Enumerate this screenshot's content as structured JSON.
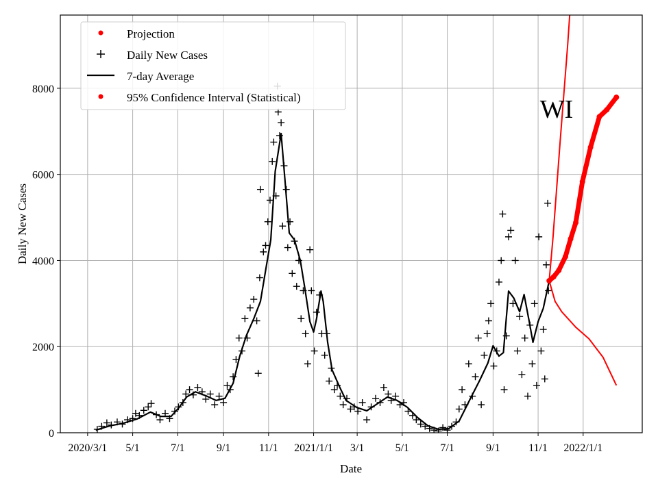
{
  "chart_data": {
    "type": "line",
    "title": "",
    "annotation": "WI",
    "xlabel": "Date",
    "ylabel": "Daily New Cases",
    "xlim": [
      "2020-01-24",
      "2022-03-22"
    ],
    "ylim": [
      0,
      9700
    ],
    "grid": true,
    "legend_placement": "top-left",
    "x_ticks": [
      {
        "date": "2020-03-01",
        "label": "2020/3/1"
      },
      {
        "date": "2020-05-01",
        "label": "5/1"
      },
      {
        "date": "2020-07-01",
        "label": "7/1"
      },
      {
        "date": "2020-09-01",
        "label": "9/1"
      },
      {
        "date": "2020-11-01",
        "label": "11/1"
      },
      {
        "date": "2021-01-01",
        "label": "2021/1/1"
      },
      {
        "date": "2021-03-01",
        "label": "3/1"
      },
      {
        "date": "2021-05-01",
        "label": "5/1"
      },
      {
        "date": "2021-07-01",
        "label": "7/1"
      },
      {
        "date": "2021-09-01",
        "label": "9/1"
      },
      {
        "date": "2021-11-01",
        "label": "11/1"
      },
      {
        "date": "2022-01-01",
        "label": "2022/1/1"
      }
    ],
    "y_ticks": [
      0,
      2000,
      4000,
      6000,
      8000
    ],
    "legend": [
      "Projection",
      "Daily New Cases",
      "7-day Average",
      "95% Confidence Interval (Statistical)"
    ],
    "colors": {
      "projection": "#ff0000",
      "confidence": "#ff0000",
      "daily": "#000000",
      "average": "#000000"
    },
    "series": [
      {
        "name": "7-day Average",
        "style": "line",
        "points": [
          [
            "2020-03-12",
            60
          ],
          [
            "2020-03-31",
            160
          ],
          [
            "2020-04-18",
            220
          ],
          [
            "2020-05-07",
            320
          ],
          [
            "2020-05-25",
            480
          ],
          [
            "2020-06-08",
            380
          ],
          [
            "2020-06-22",
            380
          ],
          [
            "2020-07-03",
            590
          ],
          [
            "2020-07-13",
            830
          ],
          [
            "2020-07-25",
            950
          ],
          [
            "2020-08-08",
            860
          ],
          [
            "2020-08-22",
            750
          ],
          [
            "2020-09-03",
            800
          ],
          [
            "2020-09-14",
            1150
          ],
          [
            "2020-09-23",
            1780
          ],
          [
            "2020-10-02",
            2260
          ],
          [
            "2020-10-12",
            2650
          ],
          [
            "2020-10-21",
            3050
          ],
          [
            "2020-10-28",
            3770
          ],
          [
            "2020-11-04",
            4480
          ],
          [
            "2020-11-10",
            6070
          ],
          [
            "2020-11-18",
            6950
          ],
          [
            "2020-11-23",
            5910
          ],
          [
            "2020-11-29",
            4640
          ],
          [
            "2020-12-06",
            4480
          ],
          [
            "2020-12-14",
            4000
          ],
          [
            "2020-12-20",
            3370
          ],
          [
            "2020-12-27",
            2580
          ],
          [
            "2021-01-01",
            2340
          ],
          [
            "2021-01-05",
            2650
          ],
          [
            "2021-01-11",
            3290
          ],
          [
            "2021-01-14",
            3050
          ],
          [
            "2021-01-20",
            2100
          ],
          [
            "2021-01-26",
            1460
          ],
          [
            "2021-02-05",
            1070
          ],
          [
            "2021-02-14",
            750
          ],
          [
            "2021-02-28",
            590
          ],
          [
            "2021-03-14",
            510
          ],
          [
            "2021-03-28",
            670
          ],
          [
            "2021-04-11",
            830
          ],
          [
            "2021-04-24",
            750
          ],
          [
            "2021-05-08",
            590
          ],
          [
            "2021-05-22",
            350
          ],
          [
            "2021-06-05",
            160
          ],
          [
            "2021-06-19",
            80
          ],
          [
            "2021-07-03",
            95
          ],
          [
            "2021-07-17",
            270
          ],
          [
            "2021-07-31",
            750
          ],
          [
            "2021-08-14",
            1220
          ],
          [
            "2021-08-25",
            1620
          ],
          [
            "2021-09-01",
            2020
          ],
          [
            "2021-09-09",
            1780
          ],
          [
            "2021-09-15",
            1860
          ],
          [
            "2021-09-22",
            3290
          ],
          [
            "2021-09-29",
            3130
          ],
          [
            "2021-10-07",
            2810
          ],
          [
            "2021-10-13",
            3210
          ],
          [
            "2021-10-20",
            2580
          ],
          [
            "2021-10-25",
            2100
          ],
          [
            "2021-11-01",
            2580
          ],
          [
            "2021-11-08",
            2890
          ],
          [
            "2021-11-16",
            3530
          ]
        ]
      },
      {
        "name": "Daily New Cases",
        "style": "plus",
        "points": [
          [
            "2020-03-14",
            80
          ],
          [
            "2020-03-20",
            150
          ],
          [
            "2020-03-27",
            230
          ],
          [
            "2020-04-02",
            180
          ],
          [
            "2020-04-10",
            250
          ],
          [
            "2020-04-17",
            200
          ],
          [
            "2020-04-24",
            300
          ],
          [
            "2020-05-01",
            330
          ],
          [
            "2020-05-05",
            450
          ],
          [
            "2020-05-10",
            400
          ],
          [
            "2020-05-16",
            520
          ],
          [
            "2020-05-22",
            600
          ],
          [
            "2020-05-26",
            680
          ],
          [
            "2020-06-02",
            420
          ],
          [
            "2020-06-07",
            300
          ],
          [
            "2020-06-14",
            450
          ],
          [
            "2020-06-20",
            330
          ],
          [
            "2020-06-27",
            500
          ],
          [
            "2020-07-02",
            600
          ],
          [
            "2020-07-08",
            700
          ],
          [
            "2020-07-12",
            900
          ],
          [
            "2020-07-17",
            1000
          ],
          [
            "2020-07-22",
            880
          ],
          [
            "2020-07-28",
            1050
          ],
          [
            "2020-08-03",
            950
          ],
          [
            "2020-08-08",
            780
          ],
          [
            "2020-08-14",
            900
          ],
          [
            "2020-08-20",
            650
          ],
          [
            "2020-08-26",
            850
          ],
          [
            "2020-09-01",
            700
          ],
          [
            "2020-09-06",
            1100
          ],
          [
            "2020-09-10",
            1000
          ],
          [
            "2020-09-14",
            1300
          ],
          [
            "2020-09-18",
            1700
          ],
          [
            "2020-09-22",
            2200
          ],
          [
            "2020-09-26",
            1900
          ],
          [
            "2020-09-30",
            2650
          ],
          [
            "2020-10-03",
            2200
          ],
          [
            "2020-10-07",
            2900
          ],
          [
            "2020-10-12",
            3100
          ],
          [
            "2020-10-16",
            2600
          ],
          [
            "2020-10-18",
            1380
          ],
          [
            "2020-10-20",
            3600
          ],
          [
            "2020-10-21",
            5650
          ],
          [
            "2020-10-25",
            4200
          ],
          [
            "2020-10-28",
            4350
          ],
          [
            "2020-10-31",
            4900
          ],
          [
            "2020-11-03",
            5400
          ],
          [
            "2020-11-06",
            6300
          ],
          [
            "2020-11-08",
            6750
          ],
          [
            "2020-11-11",
            5500
          ],
          [
            "2020-11-13",
            8050
          ],
          [
            "2020-11-14",
            7450
          ],
          [
            "2020-11-16",
            6900
          ],
          [
            "2020-11-18",
            7200
          ],
          [
            "2020-11-20",
            4800
          ],
          [
            "2020-11-22",
            6200
          ],
          [
            "2020-11-25",
            5650
          ],
          [
            "2020-11-27",
            4300
          ],
          [
            "2020-11-30",
            4900
          ],
          [
            "2020-12-03",
            3700
          ],
          [
            "2020-12-06",
            4450
          ],
          [
            "2020-12-09",
            3400
          ],
          [
            "2020-12-12",
            4000
          ],
          [
            "2020-12-15",
            2650
          ],
          [
            "2020-12-18",
            3300
          ],
          [
            "2020-12-21",
            2300
          ],
          [
            "2020-12-24",
            1600
          ],
          [
            "2020-12-27",
            4250
          ],
          [
            "2020-12-29",
            3300
          ],
          [
            "2021-01-02",
            1900
          ],
          [
            "2021-01-05",
            2800
          ],
          [
            "2021-01-09",
            3200
          ],
          [
            "2021-01-12",
            2300
          ],
          [
            "2021-01-16",
            1800
          ],
          [
            "2021-01-19",
            2300
          ],
          [
            "2021-01-22",
            1200
          ],
          [
            "2021-01-25",
            1500
          ],
          [
            "2021-01-29",
            1000
          ],
          [
            "2021-02-02",
            1100
          ],
          [
            "2021-02-06",
            850
          ],
          [
            "2021-02-10",
            650
          ],
          [
            "2021-02-15",
            800
          ],
          [
            "2021-02-20",
            550
          ],
          [
            "2021-02-25",
            600
          ],
          [
            "2021-03-02",
            500
          ],
          [
            "2021-03-08",
            700
          ],
          [
            "2021-03-14",
            300
          ],
          [
            "2021-03-20",
            600
          ],
          [
            "2021-03-26",
            800
          ],
          [
            "2021-04-01",
            700
          ],
          [
            "2021-04-06",
            1050
          ],
          [
            "2021-04-12",
            900
          ],
          [
            "2021-04-16",
            750
          ],
          [
            "2021-04-22",
            850
          ],
          [
            "2021-04-28",
            650
          ],
          [
            "2021-05-03",
            700
          ],
          [
            "2021-05-09",
            500
          ],
          [
            "2021-05-15",
            400
          ],
          [
            "2021-05-20",
            300
          ],
          [
            "2021-05-26",
            200
          ],
          [
            "2021-06-01",
            150
          ],
          [
            "2021-06-07",
            100
          ],
          [
            "2021-06-13",
            60
          ],
          [
            "2021-06-19",
            40
          ],
          [
            "2021-06-25",
            120
          ],
          [
            "2021-07-01",
            60
          ],
          [
            "2021-07-07",
            150
          ],
          [
            "2021-07-13",
            250
          ],
          [
            "2021-07-17",
            550
          ],
          [
            "2021-07-21",
            1000
          ],
          [
            "2021-07-25",
            650
          ],
          [
            "2021-07-30",
            1600
          ],
          [
            "2021-08-04",
            850
          ],
          [
            "2021-08-08",
            1300
          ],
          [
            "2021-08-12",
            2200
          ],
          [
            "2021-08-16",
            650
          ],
          [
            "2021-08-20",
            1800
          ],
          [
            "2021-08-24",
            2300
          ],
          [
            "2021-08-26",
            2600
          ],
          [
            "2021-08-29",
            3000
          ],
          [
            "2021-09-02",
            1550
          ],
          [
            "2021-09-06",
            1900
          ],
          [
            "2021-09-09",
            3500
          ],
          [
            "2021-09-12",
            4000
          ],
          [
            "2021-09-14",
            5080
          ],
          [
            "2021-09-16",
            1000
          ],
          [
            "2021-09-19",
            2250
          ],
          [
            "2021-09-22",
            4550
          ],
          [
            "2021-09-25",
            4700
          ],
          [
            "2021-09-28",
            3000
          ],
          [
            "2021-10-01",
            4000
          ],
          [
            "2021-10-04",
            1900
          ],
          [
            "2021-10-07",
            2700
          ],
          [
            "2021-10-10",
            1350
          ],
          [
            "2021-10-14",
            2200
          ],
          [
            "2021-10-18",
            850
          ],
          [
            "2021-10-21",
            2500
          ],
          [
            "2021-10-24",
            1600
          ],
          [
            "2021-10-27",
            3000
          ],
          [
            "2021-10-30",
            1100
          ],
          [
            "2021-11-02",
            4550
          ],
          [
            "2021-11-05",
            1900
          ],
          [
            "2021-11-08",
            2400
          ],
          [
            "2021-11-10",
            1250
          ],
          [
            "2021-11-12",
            3900
          ],
          [
            "2021-11-14",
            5330
          ],
          [
            "2021-11-15",
            3300
          ]
        ]
      },
      {
        "name": "Projection",
        "style": "dots",
        "points": [
          [
            "2021-11-16",
            3530
          ],
          [
            "2021-11-22",
            3620
          ],
          [
            "2021-11-29",
            3770
          ],
          [
            "2021-12-08",
            4090
          ],
          [
            "2021-12-15",
            4500
          ],
          [
            "2021-12-22",
            4880
          ],
          [
            "2021-12-31",
            5830
          ],
          [
            "2022-01-11",
            6630
          ],
          [
            "2022-01-23",
            7340
          ],
          [
            "2022-02-02",
            7500
          ],
          [
            "2022-02-15",
            7790
          ]
        ]
      },
      {
        "name": "95% Confidence Interval (Statistical)",
        "bound": "upper",
        "style": "line",
        "points": [
          [
            "2021-11-16",
            3530
          ],
          [
            "2021-11-21",
            4500
          ],
          [
            "2021-12-01",
            6800
          ],
          [
            "2021-12-11",
            9000
          ],
          [
            "2021-12-21",
            11500
          ]
        ]
      },
      {
        "name": "95% Confidence Interval (Statistical)",
        "bound": "lower",
        "style": "line",
        "points": [
          [
            "2021-11-16",
            3530
          ],
          [
            "2021-11-24",
            3050
          ],
          [
            "2021-12-03",
            2810
          ],
          [
            "2021-12-22",
            2450
          ],
          [
            "2022-01-09",
            2180
          ],
          [
            "2022-01-28",
            1750
          ],
          [
            "2022-02-15",
            1100
          ]
        ]
      }
    ]
  }
}
